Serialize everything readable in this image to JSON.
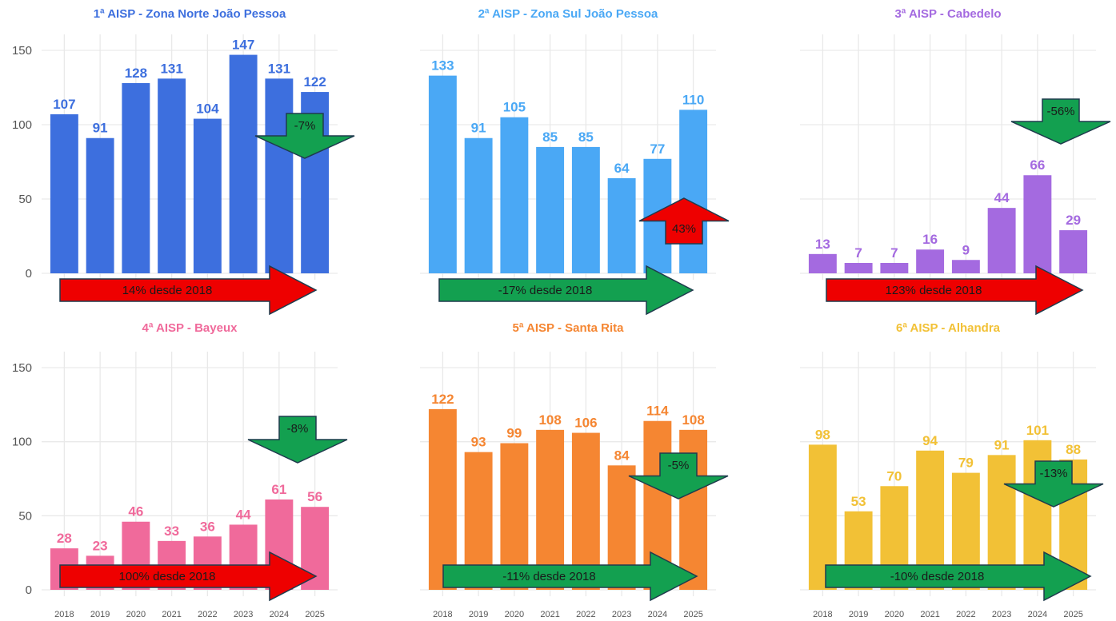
{
  "colors": {
    "up_arrow": "#ee0000",
    "down_arrow": "#13a050",
    "arrow_outline": "#1f3b4d"
  },
  "chart_data": [
    {
      "type": "bar",
      "title": "1ª AISP - Zona Norte João Pessoa",
      "color": "#3d6fde",
      "categories": [
        "2018",
        "2019",
        "2020",
        "2021",
        "2022",
        "2023",
        "2024",
        "2025"
      ],
      "values": [
        107,
        91,
        128,
        131,
        104,
        147,
        131,
        122
      ],
      "ylim": [
        0,
        160
      ],
      "yticks": [
        0,
        50,
        100,
        150
      ],
      "show_yticks": true,
      "show_xticks": false,
      "long_arrow": {
        "label": "14% desde 2018",
        "direction": "up"
      },
      "short_arrow": {
        "label": "-7%",
        "direction": "down"
      }
    },
    {
      "type": "bar",
      "title": "2ª AISP - Zona Sul João Pessoa",
      "color": "#4aa8f5",
      "categories": [
        "2018",
        "2019",
        "2020",
        "2021",
        "2022",
        "2023",
        "2024",
        "2025"
      ],
      "values": [
        133,
        91,
        105,
        85,
        85,
        64,
        77,
        110
      ],
      "ylim": [
        0,
        160
      ],
      "yticks": [
        0,
        50,
        100,
        150
      ],
      "show_yticks": false,
      "show_xticks": false,
      "long_arrow": {
        "label": "-17% desde 2018",
        "direction": "down"
      },
      "short_arrow": {
        "label": "43%",
        "direction": "up"
      }
    },
    {
      "type": "bar",
      "title": "3ª AISP - Cabedelo",
      "color": "#a46ae0",
      "categories": [
        "2018",
        "2019",
        "2020",
        "2021",
        "2022",
        "2023",
        "2024",
        "2025"
      ],
      "values": [
        13,
        7,
        7,
        16,
        9,
        44,
        66,
        29
      ],
      "ylim": [
        0,
        160
      ],
      "yticks": [
        0,
        50,
        100,
        150
      ],
      "show_yticks": false,
      "show_xticks": false,
      "long_arrow": {
        "label": "123% desde 2018",
        "direction": "up"
      },
      "short_arrow": {
        "label": "-56%",
        "direction": "down"
      }
    },
    {
      "type": "bar",
      "title": "4ª AISP - Bayeux",
      "color": "#f06a9b",
      "categories": [
        "2018",
        "2019",
        "2020",
        "2021",
        "2022",
        "2023",
        "2024",
        "2025"
      ],
      "values": [
        28,
        23,
        46,
        33,
        36,
        44,
        61,
        56
      ],
      "ylim": [
        0,
        160
      ],
      "yticks": [
        0,
        50,
        100,
        150
      ],
      "show_yticks": true,
      "show_xticks": true,
      "long_arrow": {
        "label": "100% desde 2018",
        "direction": "up"
      },
      "short_arrow": {
        "label": "-8%",
        "direction": "down"
      }
    },
    {
      "type": "bar",
      "title": "5ª AISP - Santa Rita",
      "color": "#f58632",
      "categories": [
        "2018",
        "2019",
        "2020",
        "2021",
        "2022",
        "2023",
        "2024",
        "2025"
      ],
      "values": [
        122,
        93,
        99,
        108,
        106,
        84,
        114,
        108
      ],
      "ylim": [
        0,
        160
      ],
      "yticks": [
        0,
        50,
        100,
        150
      ],
      "show_yticks": false,
      "show_xticks": true,
      "long_arrow": {
        "label": "-11% desde 2018",
        "direction": "down"
      },
      "short_arrow": {
        "label": "-5%",
        "direction": "down"
      }
    },
    {
      "type": "bar",
      "title": "6ª AISP - Alhandra",
      "color": "#f2c136",
      "categories": [
        "2018",
        "2019",
        "2020",
        "2021",
        "2022",
        "2023",
        "2024",
        "2025"
      ],
      "values": [
        98,
        53,
        70,
        94,
        79,
        91,
        101,
        88
      ],
      "ylim": [
        0,
        160
      ],
      "yticks": [
        0,
        50,
        100,
        150
      ],
      "show_yticks": false,
      "show_xticks": true,
      "long_arrow": {
        "label": "-10% desde 2018",
        "direction": "down"
      },
      "short_arrow": {
        "label": "-13%",
        "direction": "down"
      }
    }
  ]
}
